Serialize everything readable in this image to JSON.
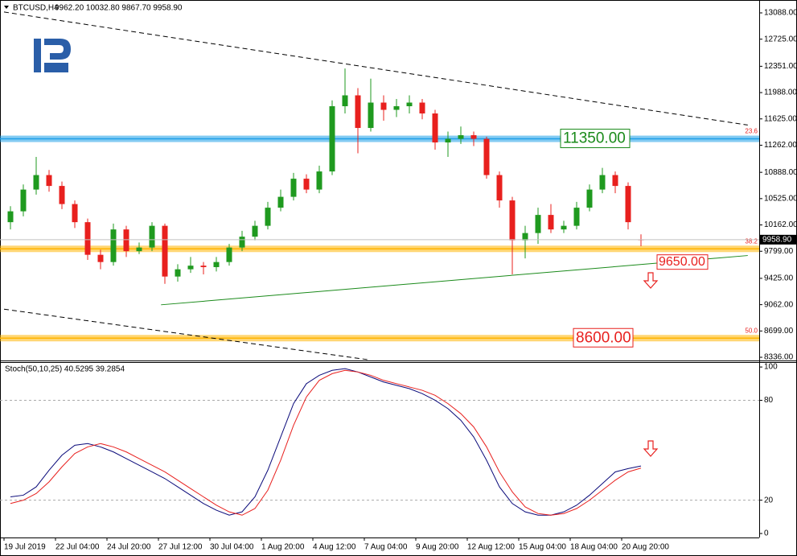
{
  "chart_data": [
    {
      "type": "candlestick",
      "title": "BTCUSD,H4",
      "subtitle": "9962.20 10032.80 9867.70 9958.90",
      "categories": [
        "19 Jul 2019",
        null,
        null,
        null,
        "22 Jul 04:00",
        null,
        null,
        null,
        "24 Jul 20:00",
        null,
        null,
        null,
        "27 Jul 12:00",
        null,
        null,
        null,
        "30 Jul 04:00",
        null,
        null,
        null,
        "1 Aug 20:00",
        null,
        null,
        null,
        "4 Aug 12:00",
        null,
        null,
        null,
        "7 Aug 04:00",
        null,
        null,
        null,
        "9 Aug 20:00",
        null,
        null,
        null,
        "12 Aug 12:00",
        null,
        null,
        null,
        "15 Aug 04:00",
        null,
        null,
        null,
        "18 Aug 04:00",
        null,
        null,
        null,
        "20 Aug 20:00",
        null
      ],
      "open": [
        10200,
        10350,
        10650,
        10850,
        10700,
        10450,
        10200,
        9750,
        9650,
        10100,
        9800,
        9850,
        10150,
        9450,
        9550,
        9600,
        9580,
        9650,
        9850,
        10000,
        10150,
        10400,
        10550,
        10800,
        10650,
        10900,
        11800,
        11950,
        11500,
        11850,
        11750,
        11800,
        11850,
        11700,
        11300,
        11350,
        11400,
        11350,
        10850,
        10500,
        9950,
        10050,
        10300,
        10100,
        10150,
        10400,
        10650,
        10850,
        10700,
        9962.2
      ],
      "high": [
        10420,
        10720,
        11100,
        10920,
        10760,
        10500,
        10250,
        9820,
        10180,
        10150,
        9920,
        10200,
        10180,
        9620,
        9720,
        9650,
        9720,
        9900,
        10080,
        10220,
        10480,
        10650,
        10880,
        10860,
        10980,
        11880,
        12320,
        12050,
        12180,
        11950,
        11900,
        11950,
        11900,
        11750,
        11450,
        11520,
        11450,
        11380,
        10900,
        10550,
        10150,
        10400,
        10450,
        10220,
        10480,
        10720,
        10950,
        10900,
        10750,
        10032.8
      ],
      "low": [
        10100,
        10280,
        10580,
        10620,
        10380,
        10120,
        9680,
        9550,
        9600,
        9720,
        9760,
        9800,
        9350,
        9380,
        9500,
        9480,
        9520,
        9600,
        9800,
        9950,
        10100,
        10350,
        10500,
        10600,
        10600,
        10850,
        11700,
        11150,
        11450,
        11600,
        11650,
        11700,
        11620,
        11200,
        11100,
        11280,
        11250,
        10800,
        10400,
        9480,
        9700,
        9900,
        10050,
        10050,
        10100,
        10350,
        10600,
        10600,
        10100,
        9867.7
      ],
      "close": [
        10350,
        10650,
        10850,
        10700,
        10450,
        10200,
        9750,
        9650,
        10100,
        9800,
        9850,
        10150,
        9450,
        9550,
        9600,
        9580,
        9650,
        9850,
        10000,
        10150,
        10400,
        10550,
        10800,
        10650,
        10900,
        11800,
        11950,
        11500,
        11850,
        11750,
        11800,
        11850,
        11700,
        11300,
        11350,
        11400,
        11350,
        10850,
        10500,
        9950,
        10050,
        10300,
        10100,
        10150,
        10400,
        10650,
        10850,
        10700,
        10200,
        9958.9
      ],
      "up_color": "#1f9a1f",
      "down_color": "#e8201e",
      "last_price_label": "9958.90",
      "ylim": [
        8303,
        13210
      ],
      "yticks": [
        {
          "value": 13088,
          "label": "13088.00"
        },
        {
          "value": 12725,
          "label": "12725.00"
        },
        {
          "value": 12351,
          "label": "12351.00"
        },
        {
          "value": 11988,
          "label": "11988.00"
        },
        {
          "value": 11625,
          "label": "11625.00"
        },
        {
          "value": 11262,
          "label": "11262.00"
        },
        {
          "value": 10888,
          "label": "10888.00"
        },
        {
          "value": 10525,
          "label": "10525.00"
        },
        {
          "value": 10162,
          "label": "10162.00"
        },
        {
          "value": 9799,
          "label": "9799.00"
        },
        {
          "value": 9425,
          "label": "9425.00"
        },
        {
          "value": 9062,
          "label": "9062.00"
        },
        {
          "value": 8699,
          "label": "8699.00"
        },
        {
          "value": 8336,
          "label": "8336.00"
        }
      ],
      "levels": [
        {
          "value": 11350,
          "label": "11350.00",
          "fib": "23.6",
          "color": "#1fa0e8"
        },
        {
          "value": 9832,
          "fib": "38.2",
          "color": "#ffb400"
        },
        {
          "value": 8600,
          "label": "8600.00",
          "fib": "50.0",
          "color": "#ffb400"
        }
      ],
      "trendlines": [
        {
          "x": [
            -0.5,
            57.3
          ],
          "y": [
            13100,
            11540
          ],
          "color": "#000000",
          "dashed": true
        },
        {
          "x": [
            -0.5,
            27.9
          ],
          "y": [
            9000,
            8300
          ],
          "color": "#000000",
          "dashed": true
        },
        {
          "x": [
            11.7,
            57.3
          ],
          "y": [
            9060,
            9740
          ],
          "color": "#1a8a1a",
          "dashed": false
        }
      ],
      "annotations": [
        {
          "text": "9650.00",
          "value": 9650
        }
      ]
    },
    {
      "type": "line",
      "title": "Stoch(50,10,25) 40.5295 39.2854",
      "ylim": [
        -2.4,
        101.5
      ],
      "yticks": [
        100,
        80,
        20,
        0
      ],
      "grid_values": [
        80,
        20
      ],
      "series": [
        {
          "color": "#0a0a7a",
          "values": [
            22,
            23,
            28,
            38,
            47,
            53,
            54,
            52,
            49,
            45,
            41,
            37,
            33,
            28,
            23,
            18,
            14,
            11,
            13,
            22,
            38,
            58,
            78,
            90,
            95,
            98,
            99,
            97,
            94,
            91,
            89,
            87,
            84,
            80,
            75,
            68,
            58,
            44,
            28,
            18,
            13,
            11,
            11,
            13,
            17,
            23,
            30,
            37,
            39,
            40.5295
          ]
        },
        {
          "color": "#e8201e",
          "values": [
            18,
            20,
            24,
            31,
            40,
            48,
            52,
            54,
            52,
            49,
            45,
            41,
            37,
            32,
            27,
            22,
            17,
            13,
            11,
            15,
            26,
            44,
            65,
            82,
            92,
            96,
            98,
            97,
            95,
            92,
            90,
            88,
            86,
            83,
            78,
            72,
            64,
            52,
            37,
            25,
            16,
            12,
            11,
            12,
            15,
            20,
            26,
            32,
            37,
            39.2854
          ]
        }
      ]
    }
  ]
}
